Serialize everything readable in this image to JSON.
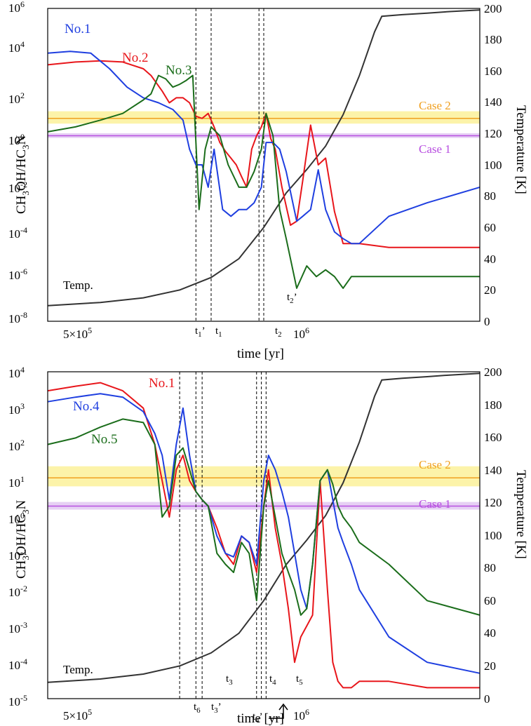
{
  "colors": {
    "red": "#e8161b",
    "blue": "#1f3fe0",
    "green": "#1b6d1b",
    "temp": "#333333",
    "case2_line": "#f0a020",
    "case2_band": "#fbf19a",
    "case1_line": "#b84fe0",
    "case1_band": "#e2c8f2"
  },
  "chart_data": [
    {
      "type": "line",
      "xlabel": "time [yr]",
      "ylabel_left": "CH3OH/HC3N",
      "ylabel_right": "Temperature [K]",
      "x_scale": "log",
      "xlim": [
        400000,
        2500000
      ],
      "x_tick_labels": [
        "5×10^5",
        "10^6"
      ],
      "ylim_left": [
        1e-08,
        1000000.0
      ],
      "y_scale_left": "log",
      "y_tick_labels_left": [
        "10^-8",
        "10^-6",
        "10^-4",
        "10^-2",
        "10^0",
        "10^2",
        "10^4",
        "10^6"
      ],
      "ylim_right": [
        0,
        200
      ],
      "y_tick_labels_right": [
        "0",
        "20",
        "40",
        "60",
        "80",
        "100",
        "120",
        "140",
        "160",
        "180",
        "200"
      ],
      "cases": [
        {
          "name": "Case 2",
          "value": 12,
          "band": [
            7,
            25
          ]
        },
        {
          "name": "Case 1",
          "value": 2,
          "band": [
            1.6,
            2.6
          ]
        }
      ],
      "time_markers": [
        {
          "label": "t1'",
          "x": 750000
        },
        {
          "label": "t1",
          "x": 800000
        },
        {
          "label": "t2",
          "x": 980000
        },
        {
          "label": "t2'",
          "x": 1000000
        }
      ],
      "temp_label": "Temp.",
      "temperature": {
        "x": [
          400000,
          500000,
          600000,
          700000,
          800000,
          900000,
          1000000,
          1100000,
          1200000,
          1300000,
          1400000,
          1500000,
          1600000,
          1650000,
          1800000,
          2000000,
          2200000,
          2500000
        ],
        "y": [
          10,
          12,
          15,
          20,
          28,
          40,
          60,
          82,
          97,
          112,
          132,
          157,
          185,
          195,
          196,
          197,
          198,
          199
        ]
      },
      "series": [
        {
          "name": "No.1",
          "color_key": "red",
          "x": [
            400000,
            450000,
            500000,
            550000,
            600000,
            620000,
            650000,
            670000,
            690000,
            710000,
            730000,
            750000,
            770000,
            790000,
            810000,
            830000,
            850000,
            870000,
            890000,
            910000,
            930000,
            950000,
            970000,
            990000,
            1010000,
            1030000,
            1050000,
            1080000,
            1120000,
            1150000,
            1180000,
            1220000,
            1260000,
            1300000,
            1350000,
            1400000,
            1500000,
            1700000,
            2000000,
            2500000
          ],
          "y": [
            3000,
            4000,
            4500,
            4000,
            2000,
            1000,
            200,
            60,
            100,
            100,
            60,
            15,
            12,
            20,
            5,
            1,
            0.4,
            0.2,
            0.1,
            0.03,
            0.01,
            0.5,
            2,
            5,
            20,
            1.5,
            0.5,
            0.01,
            0.0002,
            0.0003,
            0.02,
            6,
            0.1,
            0.2,
            0.0008,
            3e-05,
            3e-05,
            2e-05,
            2e-05,
            2e-05
          ]
        },
        {
          "name": "No.2",
          "color_key": "blue",
          "x": [
            400000,
            440000,
            480000,
            520000,
            560000,
            600000,
            640000,
            680000,
            710000,
            730000,
            750000,
            770000,
            790000,
            810000,
            840000,
            870000,
            900000,
            930000,
            960000,
            990000,
            1010000,
            1040000,
            1070000,
            1100000,
            1150000,
            1180000,
            1220000,
            1260000,
            1300000,
            1350000,
            1400000,
            1450000,
            1500000,
            1700000,
            2000000,
            2500000
          ],
          "y": [
            10000,
            12000,
            10000,
            2000,
            300,
            100,
            60,
            30,
            10,
            0.5,
            0.1,
            0.1,
            0.01,
            0.5,
            0.001,
            0.0005,
            0.001,
            0.001,
            0.002,
            0.01,
            1,
            1,
            0.5,
            0.05,
            0.0003,
            0.0005,
            0.001,
            0.06,
            0.001,
            0.0001,
            5e-05,
            3e-05,
            3e-05,
            0.0005,
            0.002,
            0.01
          ]
        },
        {
          "name": "No.3",
          "color_key": "green",
          "x": [
            400000,
            450000,
            500000,
            550000,
            600000,
            620000,
            640000,
            660000,
            680000,
            700000,
            720000,
            740000,
            760000,
            780000,
            800000,
            830000,
            860000,
            900000,
            930000,
            960000,
            990000,
            1010000,
            1040000,
            1070000,
            1100000,
            1150000,
            1200000,
            1250000,
            1300000,
            1350000,
            1400000,
            1450000,
            1500000,
            1700000,
            2000000,
            2500000
          ],
          "y": [
            3,
            5,
            10,
            20,
            80,
            150,
            1000,
            700,
            300,
            400,
            600,
            1000,
            0.001,
            0.5,
            5,
            2,
            0.1,
            0.01,
            0.01,
            0.05,
            0.5,
            20,
            2,
            0.001,
            5e-05,
            3e-07,
            3e-06,
            1e-06,
            2e-06,
            1e-06,
            3e-07,
            1e-06,
            1e-06,
            1e-06,
            1e-06,
            1e-06
          ]
        }
      ]
    },
    {
      "type": "line",
      "xlabel": "time [yr]",
      "ylabel_left": "CH3OH/HC3N",
      "ylabel_right": "Temperature [K]",
      "x_scale": "log",
      "xlim": [
        400000,
        2500000
      ],
      "x_tick_labels": [
        "5×10^5",
        "10^6"
      ],
      "ylim_left": [
        1e-05,
        10000.0
      ],
      "y_scale_left": "log",
      "y_tick_labels_left": [
        "10^-5",
        "10^-4",
        "10^-3",
        "10^-2",
        "10^-1",
        "10^0",
        "10^1",
        "10^2",
        "10^3",
        "10^4"
      ],
      "ylim_right": [
        0,
        200
      ],
      "y_tick_labels_right": [
        "0",
        "20",
        "40",
        "60",
        "80",
        "100",
        "120",
        "140",
        "160",
        "180",
        "200"
      ],
      "cases": [
        {
          "name": "Case 2",
          "value": 12,
          "band": [
            7,
            25
          ]
        },
        {
          "name": "Case 1",
          "value": 2,
          "band": [
            1.6,
            2.6
          ]
        }
      ],
      "time_markers": [
        {
          "label": "t6",
          "x": 700000
        },
        {
          "label": "t3'",
          "x": 750000
        },
        {
          "label": "t3",
          "x": 770000
        },
        {
          "label": "t4",
          "x": 970000
        },
        {
          "label": "t4'",
          "x": 990000
        },
        {
          "label": "t5",
          "x": 1010000
        }
      ],
      "temp_label": "Temp.",
      "temperature": {
        "x": [
          400000,
          500000,
          600000,
          700000,
          800000,
          900000,
          1000000,
          1100000,
          1200000,
          1300000,
          1400000,
          1500000,
          1600000,
          1650000,
          1800000,
          2000000,
          2200000,
          2500000
        ],
        "y": [
          10,
          12,
          15,
          20,
          28,
          40,
          60,
          82,
          97,
          112,
          132,
          157,
          185,
          195,
          196,
          197,
          198,
          199
        ]
      },
      "series": [
        {
          "name": "No.1",
          "color_key": "red",
          "x": [
            400000,
            450000,
            500000,
            550000,
            600000,
            630000,
            650000,
            670000,
            690000,
            710000,
            730000,
            750000,
            770000,
            790000,
            820000,
            850000,
            880000,
            910000,
            940000,
            970000,
            1000000,
            1020000,
            1050000,
            1080000,
            1110000,
            1140000,
            1170000,
            1200000,
            1230000,
            1270000,
            1310000,
            1340000,
            1370000,
            1400000,
            1450000,
            1500000,
            1700000,
            2000000,
            2500000
          ],
          "y": [
            3000,
            4000,
            5000,
            3000,
            1000,
            100,
            10,
            1,
            20,
            50,
            10,
            5,
            3,
            2,
            0.5,
            0.1,
            0.05,
            0.3,
            0.2,
            0.03,
            2,
            20,
            0.5,
            0.05,
            0.003,
            0.0001,
            0.0005,
            0.001,
            0.002,
            10,
            0.01,
            0.0001,
            3e-05,
            2e-05,
            2e-05,
            3e-05,
            3e-05,
            2e-05,
            2e-05
          ]
        },
        {
          "name": "No.4",
          "color_key": "blue",
          "x": [
            400000,
            450000,
            500000,
            550000,
            600000,
            630000,
            650000,
            670000,
            690000,
            710000,
            730000,
            750000,
            770000,
            790000,
            820000,
            850000,
            880000,
            910000,
            940000,
            970000,
            1000000,
            1020000,
            1050000,
            1080000,
            1110000,
            1140000,
            1170000,
            1200000,
            1230000,
            1270000,
            1310000,
            1340000,
            1370000,
            1400000,
            1450000,
            1500000,
            1700000,
            2000000,
            2500000
          ],
          "y": [
            1500,
            2000,
            2500,
            2000,
            800,
            200,
            50,
            3,
            100,
            1000,
            50,
            5,
            3,
            2,
            0.3,
            0.1,
            0.08,
            0.3,
            0.2,
            0.05,
            10,
            50,
            20,
            5,
            1,
            0.1,
            0.01,
            0.003,
            0.05,
            10,
            20,
            3,
            0.5,
            0.2,
            0.05,
            0.01,
            0.0005,
            0.0001,
            5e-05
          ]
        },
        {
          "name": "No.5",
          "color_key": "green",
          "x": [
            400000,
            450000,
            500000,
            550000,
            600000,
            630000,
            650000,
            670000,
            690000,
            710000,
            730000,
            750000,
            770000,
            790000,
            820000,
            850000,
            880000,
            910000,
            940000,
            970000,
            1000000,
            1020000,
            1050000,
            1080000,
            1110000,
            1140000,
            1170000,
            1200000,
            1230000,
            1270000,
            1310000,
            1340000,
            1370000,
            1400000,
            1450000,
            1500000,
            1700000,
            2000000,
            2500000
          ],
          "y": [
            100,
            150,
            300,
            500,
            400,
            100,
            1,
            2,
            50,
            80,
            20,
            5,
            3,
            2,
            0.1,
            0.05,
            0.03,
            0.2,
            0.1,
            0.005,
            2,
            10,
            1,
            0.1,
            0.03,
            0.01,
            0.002,
            0.003,
            0.05,
            10,
            20,
            8,
            2,
            1,
            0.5,
            0.2,
            0.05,
            0.005,
            0.002
          ]
        }
      ]
    }
  ]
}
